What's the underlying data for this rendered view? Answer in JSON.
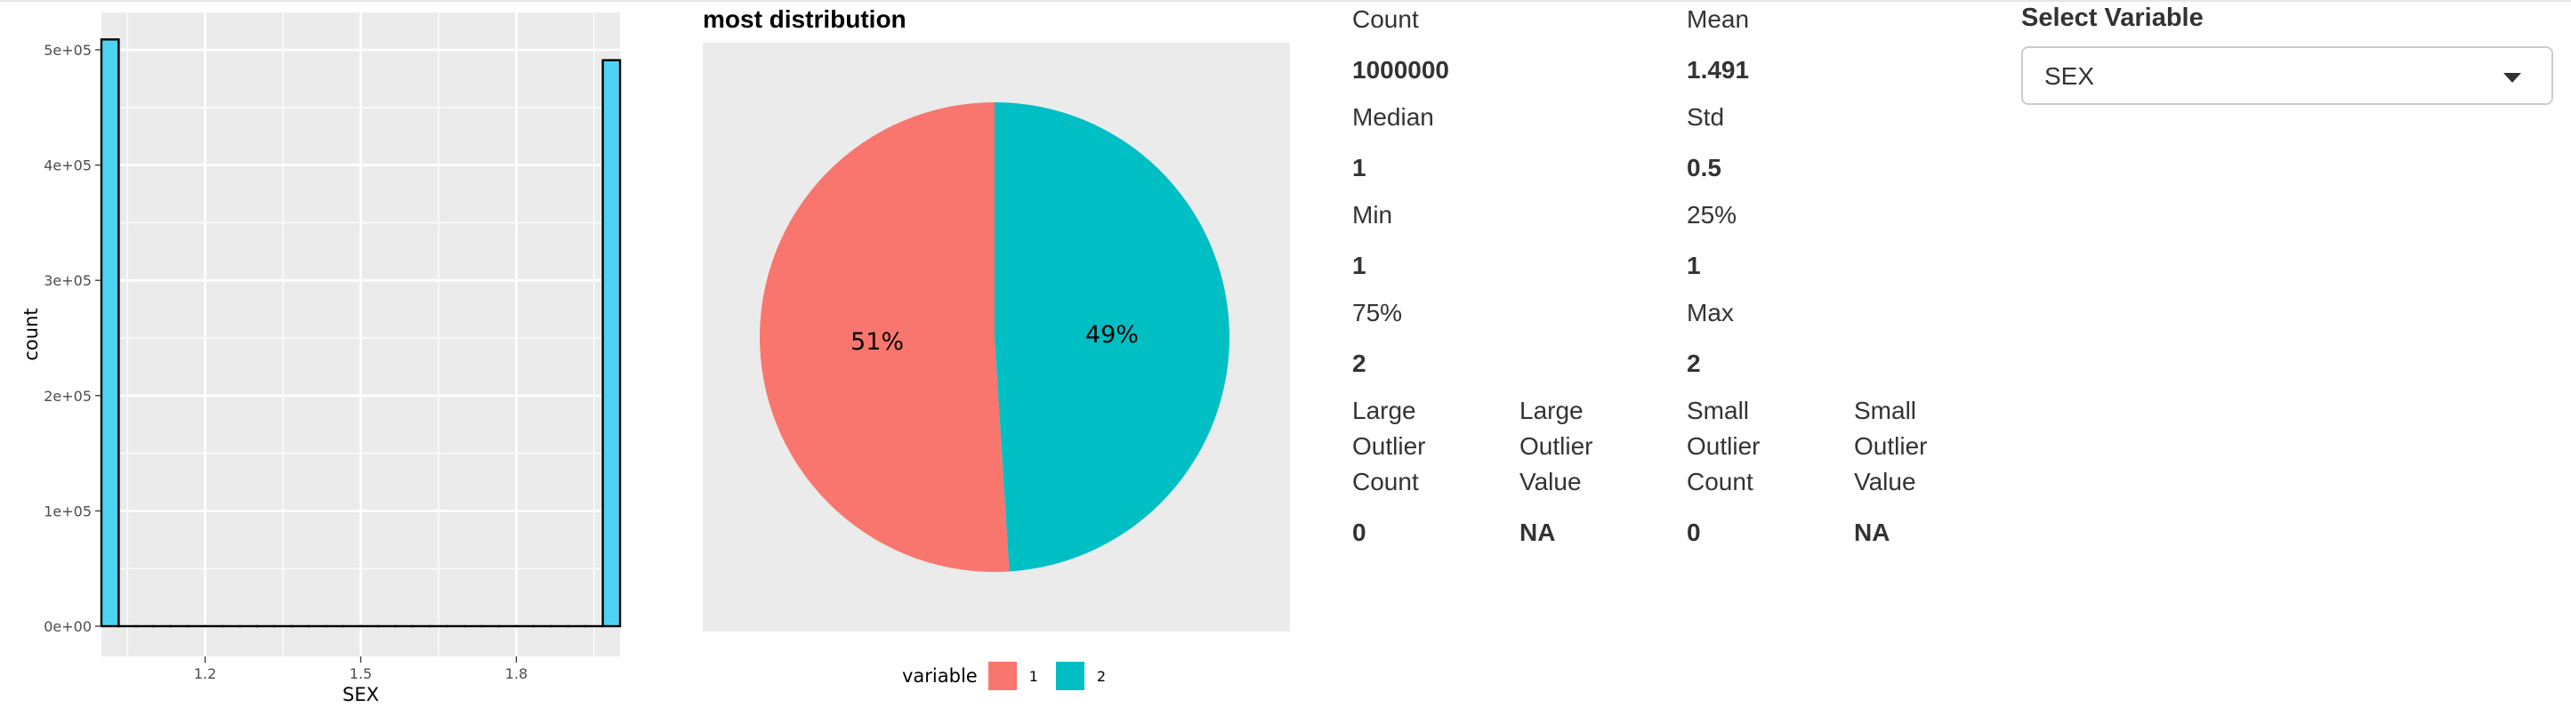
{
  "histogram": {
    "chart_data": {
      "type": "bar",
      "xlabel": "SEX",
      "ylabel": "count",
      "xlim": [
        1.0,
        2.0
      ],
      "ylim": [
        0,
        520000
      ],
      "x_ticks": [
        1.2,
        1.5,
        1.8
      ],
      "x_tick_labels": [
        "1.2",
        "1.5",
        "1.8"
      ],
      "y_ticks": [
        0,
        100000,
        200000,
        300000,
        400000,
        500000
      ],
      "y_tick_labels": [
        "0e+00",
        "1e+05",
        "2e+05",
        "3e+05",
        "4e+05",
        "5e+05"
      ],
      "bins": [
        {
          "x0": 1.0,
          "x1": 1.0333,
          "value": 509000
        },
        {
          "x0": 1.0333,
          "x1": 1.0667,
          "value": 0
        },
        {
          "x0": 1.0667,
          "x1": 1.1,
          "value": 0
        },
        {
          "x0": 1.1,
          "x1": 1.1333,
          "value": 0
        },
        {
          "x0": 1.1333,
          "x1": 1.1667,
          "value": 0
        },
        {
          "x0": 1.1667,
          "x1": 1.2,
          "value": 0
        },
        {
          "x0": 1.2,
          "x1": 1.2333,
          "value": 0
        },
        {
          "x0": 1.2333,
          "x1": 1.2667,
          "value": 0
        },
        {
          "x0": 1.2667,
          "x1": 1.3,
          "value": 0
        },
        {
          "x0": 1.3,
          "x1": 1.3333,
          "value": 0
        },
        {
          "x0": 1.3333,
          "x1": 1.3667,
          "value": 0
        },
        {
          "x0": 1.3667,
          "x1": 1.4,
          "value": 0
        },
        {
          "x0": 1.4,
          "x1": 1.4333,
          "value": 0
        },
        {
          "x0": 1.4333,
          "x1": 1.4667,
          "value": 0
        },
        {
          "x0": 1.4667,
          "x1": 1.5,
          "value": 0
        },
        {
          "x0": 1.5,
          "x1": 1.5333,
          "value": 0
        },
        {
          "x0": 1.5333,
          "x1": 1.5667,
          "value": 0
        },
        {
          "x0": 1.5667,
          "x1": 1.6,
          "value": 0
        },
        {
          "x0": 1.6,
          "x1": 1.6333,
          "value": 0
        },
        {
          "x0": 1.6333,
          "x1": 1.6667,
          "value": 0
        },
        {
          "x0": 1.6667,
          "x1": 1.7,
          "value": 0
        },
        {
          "x0": 1.7,
          "x1": 1.7333,
          "value": 0
        },
        {
          "x0": 1.7333,
          "x1": 1.7667,
          "value": 0
        },
        {
          "x0": 1.7667,
          "x1": 1.8,
          "value": 0
        },
        {
          "x0": 1.8,
          "x1": 1.8333,
          "value": 0
        },
        {
          "x0": 1.8333,
          "x1": 1.8667,
          "value": 0
        },
        {
          "x0": 1.8667,
          "x1": 1.9,
          "value": 0
        },
        {
          "x0": 1.9,
          "x1": 1.9333,
          "value": 0
        },
        {
          "x0": 1.9333,
          "x1": 1.9667,
          "value": 0
        },
        {
          "x0": 1.9667,
          "x1": 2.0,
          "value": 491000
        }
      ],
      "fill_color": "#4dd4f4",
      "panel_color": "#ebebeb",
      "grid": true
    }
  },
  "pie": {
    "title": "most distribution",
    "chart_data": {
      "type": "pie",
      "legend_title": "variable",
      "legend_position": "bottom",
      "slices": [
        {
          "label": "1",
          "value": 51,
          "text": "51%",
          "color": "#f8766d"
        },
        {
          "label": "2",
          "value": 49,
          "text": "49%",
          "color": "#00bfc4"
        }
      ],
      "panel_color": "#ebebeb"
    }
  },
  "stats": {
    "count_label": "Count",
    "count_value": "1000000",
    "mean_label": "Mean",
    "mean_value": "1.491",
    "median_label": "Median",
    "median_value": "1",
    "std_label": "Std",
    "std_value": "0.5",
    "min_label": "Min",
    "min_value": "1",
    "p25_label": "25%",
    "p25_value": "1",
    "p75_label": "75%",
    "p75_value": "2",
    "max_label": "Max",
    "max_value": "2",
    "large_outlier_count_label": [
      "Large",
      "Outlier",
      "Count"
    ],
    "large_outlier_count_value": "0",
    "large_outlier_value_label": [
      "Large",
      "Outlier",
      "Value"
    ],
    "large_outlier_value_value": "NA",
    "small_outlier_count_label": [
      "Small",
      "Outlier",
      "Count"
    ],
    "small_outlier_count_value": "0",
    "small_outlier_value_label": [
      "Small",
      "Outlier",
      "Value"
    ],
    "small_outlier_value_value": "NA"
  },
  "select": {
    "title": "Select Variable",
    "selected": "SEX"
  }
}
